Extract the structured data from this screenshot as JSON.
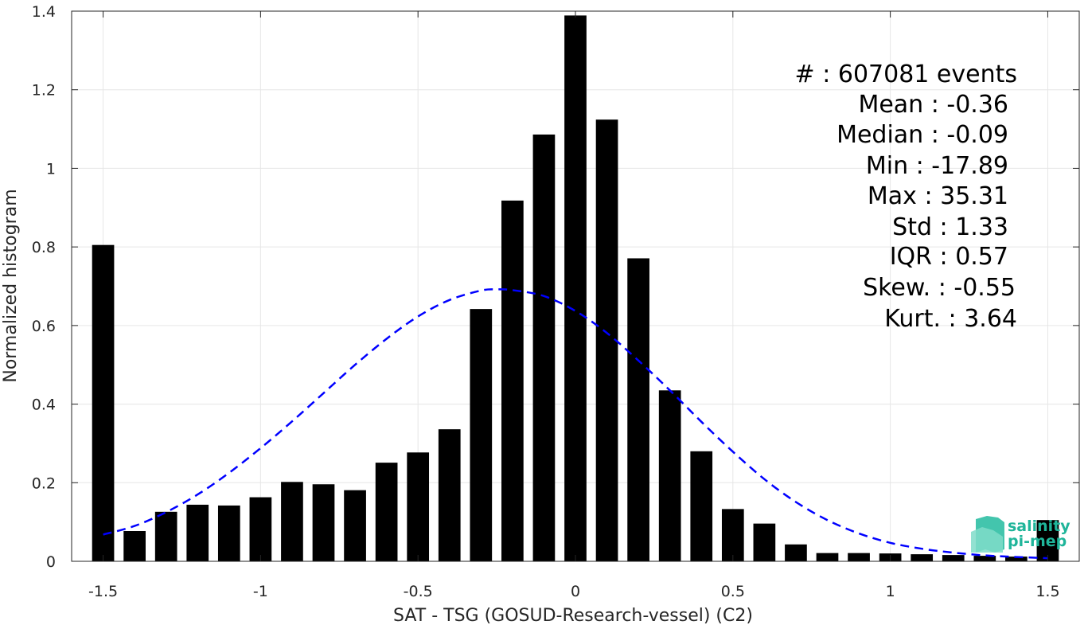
{
  "chart_data": {
    "type": "bar",
    "xlabel": "SAT - TSG (GOSUD-Research-vessel) (C2)",
    "ylabel": "Normalized histogram",
    "xlim": [
      -1.6,
      1.6
    ],
    "ylim": [
      0,
      1.4
    ],
    "grid": true,
    "x_ticks": [
      {
        "value": -1.5,
        "label": "-1.5"
      },
      {
        "value": -1,
        "label": "-1"
      },
      {
        "value": -0.5,
        "label": "-0.5"
      },
      {
        "value": 0,
        "label": "0"
      },
      {
        "value": 0.5,
        "label": "0.5"
      },
      {
        "value": 1,
        "label": "1"
      },
      {
        "value": 1.5,
        "label": "1.5"
      }
    ],
    "y_ticks": [
      {
        "value": 0,
        "label": "0"
      },
      {
        "value": 0.2,
        "label": "0.2"
      },
      {
        "value": 0.4,
        "label": "0.4"
      },
      {
        "value": 0.6,
        "label": "0.6"
      },
      {
        "value": 0.8,
        "label": "0.8"
      },
      {
        "value": 1,
        "label": "1"
      },
      {
        "value": 1.2,
        "label": "1.2"
      },
      {
        "value": 1.4,
        "label": "1.4"
      }
    ],
    "bar_width": 0.07,
    "x": [
      -1.5,
      -1.4,
      -1.3,
      -1.2,
      -1.1,
      -1.0,
      -0.9,
      -0.8,
      -0.7,
      -0.6,
      -0.5,
      -0.4,
      -0.3,
      -0.2,
      -0.1,
      0.0,
      0.1,
      0.2,
      0.3,
      0.4,
      0.5,
      0.6,
      0.7,
      0.8,
      0.9,
      1.0,
      1.1,
      1.2,
      1.3,
      1.4,
      1.5
    ],
    "values": [
      0.805,
      0.077,
      0.126,
      0.144,
      0.142,
      0.163,
      0.202,
      0.196,
      0.181,
      0.251,
      0.277,
      0.336,
      0.642,
      0.918,
      1.086,
      1.389,
      1.124,
      0.771,
      0.435,
      0.28,
      0.133,
      0.096,
      0.043,
      0.021,
      0.021,
      0.02,
      0.018,
      0.016,
      0.014,
      0.012,
      0.105
    ],
    "bar_color": "#000000",
    "fit_curve": {
      "style": "dashed",
      "color": "#0000ff",
      "x": [
        -1.5,
        -1.4,
        -1.3,
        -1.2,
        -1.1,
        -1.0,
        -0.9,
        -0.8,
        -0.7,
        -0.6,
        -0.5,
        -0.4,
        -0.3,
        -0.25,
        -0.2,
        -0.1,
        0.0,
        0.1,
        0.2,
        0.3,
        0.4,
        0.5,
        0.6,
        0.7,
        0.8,
        0.9,
        1.0,
        1.1,
        1.2,
        1.3,
        1.4,
        1.5
      ],
      "y": [
        0.068,
        0.09,
        0.125,
        0.17,
        0.225,
        0.288,
        0.356,
        0.428,
        0.5,
        0.566,
        0.623,
        0.665,
        0.689,
        0.692,
        0.69,
        0.675,
        0.637,
        0.581,
        0.511,
        0.435,
        0.355,
        0.279,
        0.209,
        0.151,
        0.105,
        0.071,
        0.047,
        0.032,
        0.022,
        0.015,
        0.011,
        0.008
      ]
    },
    "annotation_lines": [
      "#  : 607081 events",
      "Mean : -0.36",
      "Median : -0.09",
      "Min : -17.89",
      "Max : 35.31",
      "Std : 1.33",
      "IQR : 0.57",
      "Skew. : -0.55",
      "Kurt. : 3.64"
    ],
    "annotation_placement": "top-right"
  },
  "logo": {
    "line1": "salinity",
    "line2": "pi-mep",
    "color": "#1fb59a"
  }
}
